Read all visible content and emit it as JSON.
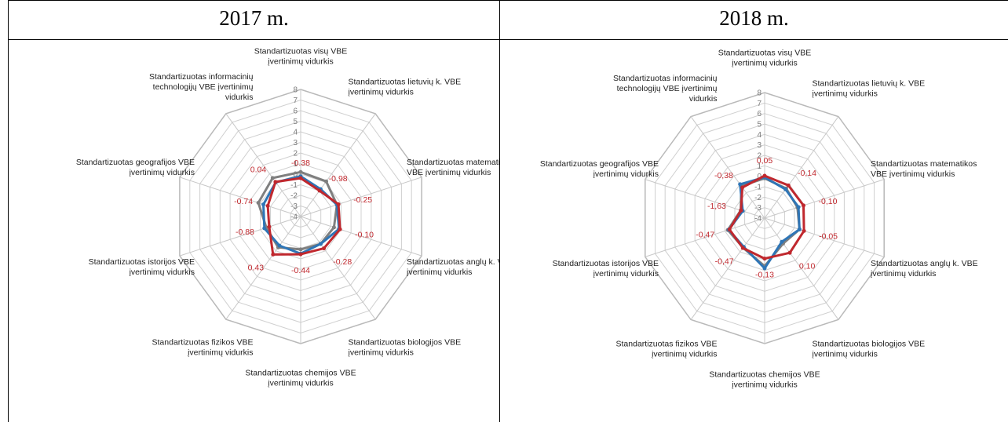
{
  "table": {
    "headers": [
      "2017 m.",
      "2018 m."
    ]
  },
  "colors": {
    "grey": "#7f7f7f",
    "blue": "#2e75b6",
    "red": "#c0282e",
    "grid": "#d0d0d0"
  },
  "chart_data": [
    {
      "type": "radar",
      "title": "",
      "ticks": [
        "8",
        "7",
        "6",
        "5",
        "4",
        "3",
        "2",
        "1",
        "0",
        "-1",
        "-2",
        "-3",
        "-4"
      ],
      "rmin": -4,
      "rmax": 8,
      "axes": [
        [
          "Standartizuotas visų VBE",
          "įvertinimų vidurkis"
        ],
        [
          "Standartizuotas lietuvių k. VBE",
          "įvertinimų vidurkis"
        ],
        [
          "Standartizuotas matematikos VBE",
          "VBE įvertinimų vidurkis"
        ],
        [
          "Standartizuotas anglų k. VBE",
          "įvertinimų vidurkis"
        ],
        [
          "Standartizuotas biologijos VBE",
          "įvertinimų vidurkis"
        ],
        [
          "Standartizuotas chemijos VBE",
          "įvertinimų vidurkis"
        ],
        [
          "Standartizuotas fizikos VBE",
          "įvertinimų vidurkis"
        ],
        [
          "Standartizuotas istorijos VBE",
          "įvertinimų vidurkis"
        ],
        [
          "Standartizuotas geografijos VBE",
          "įvertinimų vidurkis"
        ],
        [
          "Standartizuotas informacinių",
          "technologijų VBE įvertinimų",
          "vidurkis"
        ]
      ],
      "series": [
        {
          "color": "#7f7f7f",
          "values": [
            0.2,
            0.1,
            -0.4,
            -0.7,
            -0.8,
            -0.9,
            -0.4,
            -0.6,
            0.2,
            0.5
          ]
        },
        {
          "color": "#2e75b6",
          "values": [
            -0.2,
            -0.8,
            -0.4,
            -0.2,
            -0.8,
            -0.5,
            -0.6,
            -0.4,
            -0.3,
            0.0
          ]
        },
        {
          "color": "#c0282e",
          "values": [
            -0.38,
            -0.98,
            -0.25,
            -0.1,
            -0.28,
            -0.44,
            0.43,
            -0.88,
            -0.74,
            0.04
          ]
        }
      ],
      "data_labels": [
        "-0.38",
        "-0.98",
        "-0.25",
        "-0.10",
        "-0.28",
        "-0.44",
        "0.43",
        "-0.88",
        "-0.74",
        "0.04"
      ]
    },
    {
      "type": "radar",
      "title": "",
      "ticks": [
        "8",
        "7",
        "6",
        "5",
        "4",
        "3",
        "2",
        "1",
        "0",
        "-1",
        "-2",
        "-3",
        "-4"
      ],
      "rmin": -4,
      "rmax": 8,
      "axes": [
        [
          "Standartizuotas visų VBE",
          "įvertinimų vidurkis"
        ],
        [
          "Standartizuotas lietuvių k. VBE",
          "įvertinimų vidurkis"
        ],
        [
          "Standartizuotas matematikos",
          "VBE įvertinimų vidurkis"
        ],
        [
          "Standartizuotas anglų k. VBE",
          "įvertinimų vidurkis"
        ],
        [
          "Standartizuotas biologijos VBE",
          "įvertinimų vidurkis"
        ],
        [
          "Standartizuotas chemijos VBE",
          "įvertinimų vidurkis"
        ],
        [
          "Standartizuotas fizikos VBE",
          "įvertinimų vidurkis"
        ],
        [
          "Standartizuotas istorijos VBE",
          "įvertinimų vidurkis"
        ],
        [
          "Standartizuotas geografijos VBE",
          "įvertinimų vidurkis"
        ],
        [
          "Standartizuotas informacinių",
          "technologijų VBE įvertinimų",
          "vidurkis"
        ]
      ],
      "series": [
        {
          "color": "#7f7f7f",
          "values": [
            -0.2,
            -0.5,
            -0.7,
            -0.5,
            -1.0,
            0.6,
            -0.5,
            -0.3,
            -1.6,
            -0.2
          ]
        },
        {
          "color": "#2e75b6",
          "values": [
            -0.1,
            -0.6,
            -0.6,
            -0.5,
            -1.2,
            0.8,
            -0.6,
            -0.4,
            -1.8,
            0.0
          ]
        },
        {
          "color": "#c0282e",
          "values": [
            0.05,
            -0.14,
            -0.1,
            -0.05,
            0.1,
            -0.13,
            -0.47,
            -0.47,
            -1.63,
            -0.38
          ]
        }
      ],
      "data_labels": [
        "0,05",
        "-0,14",
        "-0,10",
        "-0,05",
        "0,10",
        "-0,13",
        "-0,47",
        "-0,47",
        "-1,63",
        "-0,38"
      ]
    }
  ]
}
